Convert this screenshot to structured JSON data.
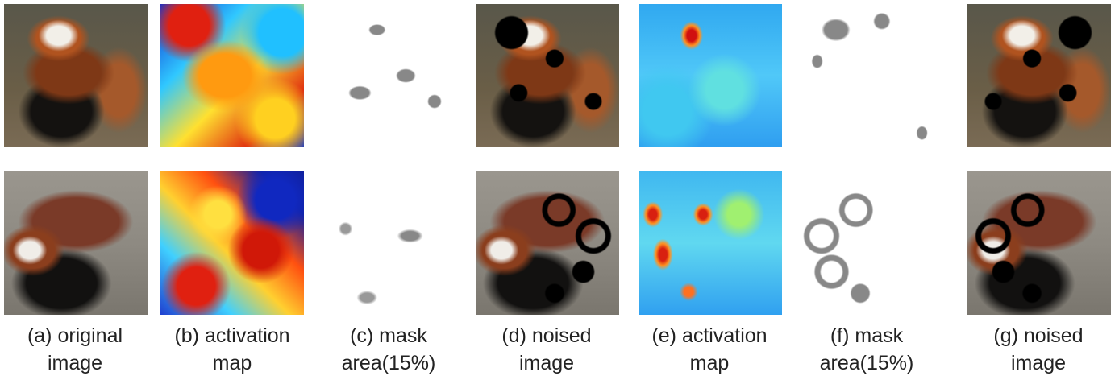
{
  "captions": [
    {
      "lines": [
        "(a) original",
        "image"
      ]
    },
    {
      "lines": [
        "(b) activation",
        "map"
      ]
    },
    {
      "lines": [
        "(c) mask",
        "area(15%)"
      ]
    },
    {
      "lines": [
        "(d) noised",
        "image"
      ]
    },
    {
      "lines": [
        "(e) activation",
        "map"
      ]
    },
    {
      "lines": [
        "(f) mask",
        "area(15%)"
      ]
    },
    {
      "lines": [
        "(g) noised",
        "image"
      ]
    }
  ]
}
